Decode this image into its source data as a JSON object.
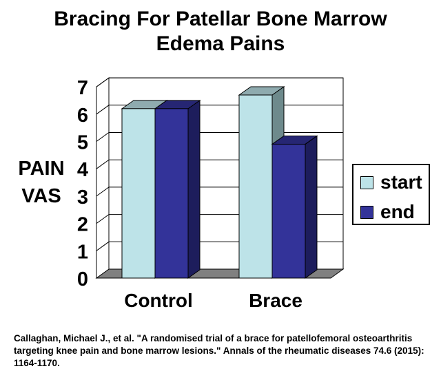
{
  "chart_data": {
    "type": "bar",
    "title_lines": [
      "Bracing For Patellar Bone Marrow",
      "Edema Pains"
    ],
    "ylabel_lines": [
      "PAIN",
      "VAS"
    ],
    "xlabel": "",
    "categories": [
      "Control",
      "Brace"
    ],
    "series": [
      {
        "name": "start",
        "values": [
          6.2,
          6.7
        ],
        "color": "#bde3e8",
        "side_color": "#6e8a8c",
        "top_color": "#8fabaf"
      },
      {
        "name": "end",
        "values": [
          6.2,
          4.9
        ],
        "color": "#333399",
        "side_color": "#1d1d5c",
        "top_color": "#262673"
      }
    ],
    "ylim": [
      0,
      7
    ],
    "yticks": [
      "0",
      "1",
      "2",
      "3",
      "4",
      "5",
      "6",
      "7"
    ],
    "grid": true,
    "legend_position": "right",
    "floor_color": "#808080"
  },
  "citation": "Callaghan, Michael J., et al. \"A randomised trial of a brace for patellofemoral osteoarthritis targeting knee pain and bone marrow lesions.\" Annals of the rheumatic diseases 74.6 (2015): 1164-1170."
}
